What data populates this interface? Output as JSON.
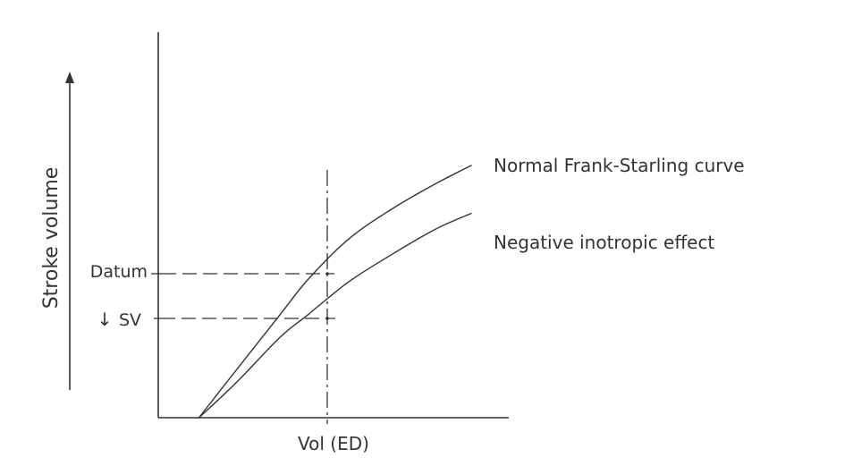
{
  "chart_data": {
    "type": "line",
    "xlabel": "Vol (ED)",
    "ylabel": "Stroke volume",
    "tick_labels": {
      "datum": "Datum",
      "reduced_sv": "SV",
      "reduced_sv_arrow": "↓"
    },
    "series": [
      {
        "name": "Normal Frank-Starling curve",
        "x": [
          0.13,
          0.25,
          0.39,
          0.48,
          0.61,
          0.75,
          0.89,
          1.0
        ],
        "y": [
          0.0,
          0.19,
          0.41,
          0.55,
          0.71,
          0.83,
          0.93,
          1.0
        ]
      },
      {
        "name": "Negative inotropic effect",
        "x": [
          0.13,
          0.25,
          0.39,
          0.48,
          0.61,
          0.75,
          0.89,
          1.0
        ],
        "y": [
          0.0,
          0.14,
          0.32,
          0.41,
          0.54,
          0.65,
          0.75,
          0.81
        ]
      }
    ],
    "reference_x": 0.48,
    "grid": false,
    "legend": "labels at curve ends"
  }
}
